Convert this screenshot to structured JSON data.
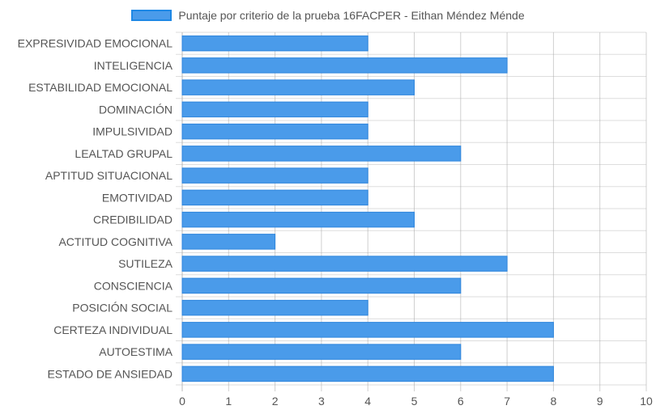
{
  "legend": {
    "label": "Puntaje por criterio de la prueba 16FACPER - Eithan Méndez Ménde"
  },
  "colors": {
    "bar_fill": "#4a9bea",
    "bar_border": "#2f86dd",
    "grid": "#dddddd",
    "grid_strong": "#aaaaaa",
    "text": "#555555"
  },
  "chart_data": {
    "type": "bar",
    "orientation": "horizontal",
    "categories": [
      "EXPRESIVIDAD EMOCIONAL",
      "INTELIGENCIA",
      "ESTABILIDAD EMOCIONAL",
      "DOMINACIÓN",
      "IMPULSIVIDAD",
      "LEALTAD GRUPAL",
      "APTITUD SITUACIONAL",
      "EMOTIVIDAD",
      "CREDIBILIDAD",
      "ACTITUD COGNITIVA",
      "SUTILEZA",
      "CONSCIENCIA",
      "POSICIÓN SOCIAL",
      "CERTEZA INDIVIDUAL",
      "AUTOESTIMA",
      "ESTADO DE ANSIEDAD"
    ],
    "series": [
      {
        "name": "Puntaje por criterio de la prueba 16FACPER - Eithan Méndez Ménde",
        "values": [
          4,
          7,
          5,
          4,
          4,
          6,
          4,
          4,
          5,
          2,
          7,
          6,
          4,
          8,
          6,
          8
        ]
      }
    ],
    "xlim": [
      0,
      10
    ],
    "xticks": [
      "0",
      "1",
      "2",
      "3",
      "4",
      "5",
      "6",
      "7",
      "8",
      "9",
      "10"
    ],
    "grid": true,
    "legend_position": "top"
  }
}
